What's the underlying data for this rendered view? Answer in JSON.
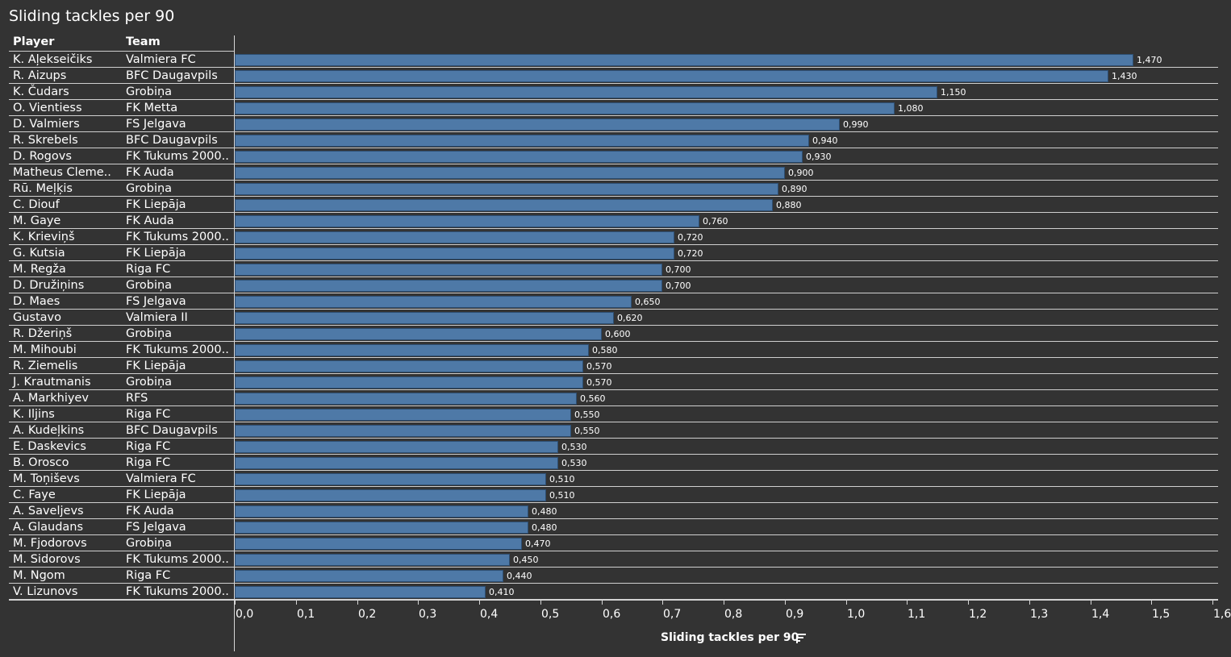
{
  "chart_data": {
    "type": "bar",
    "orientation": "horizontal",
    "title": "Sliding tackles per 90",
    "columns": [
      "Player",
      "Team"
    ],
    "xlabel": "Sliding tackles per 90",
    "xlim": [
      0,
      1.6
    ],
    "ticks": [
      "0,0",
      "0,1",
      "0,2",
      "0,3",
      "0,4",
      "0,5",
      "0,6",
      "0,7",
      "0,8",
      "0,9",
      "1,0",
      "1,1",
      "1,2",
      "1,3",
      "1,4",
      "1,5",
      "1,6"
    ],
    "grid": false,
    "bar_color": "#4e79a7",
    "rows": [
      {
        "player": "K. Aļekseičiks",
        "team": "Valmiera FC",
        "value": 1.47,
        "label": "1,470"
      },
      {
        "player": "R. Aizups",
        "team": "BFC Daugavpils",
        "value": 1.43,
        "label": "1,430"
      },
      {
        "player": "K. Čudars",
        "team": "Grobiņa",
        "value": 1.15,
        "label": "1,150"
      },
      {
        "player": "O. Vientiess",
        "team": "FK Metta",
        "value": 1.08,
        "label": "1,080"
      },
      {
        "player": "D. Valmiers",
        "team": "FS Jelgava",
        "value": 0.99,
        "label": "0,990"
      },
      {
        "player": "R. Skrebels",
        "team": "BFC Daugavpils",
        "value": 0.94,
        "label": "0,940"
      },
      {
        "player": "D. Rogovs",
        "team": "FK Tukums 2000..",
        "value": 0.93,
        "label": "0,930"
      },
      {
        "player": "Matheus Cleme..",
        "team": "FK Auda",
        "value": 0.9,
        "label": "0,900"
      },
      {
        "player": "Rū. Meļķis",
        "team": "Grobiņa",
        "value": 0.89,
        "label": "0,890"
      },
      {
        "player": "C. Diouf",
        "team": "FK Liepāja",
        "value": 0.88,
        "label": "0,880"
      },
      {
        "player": "M. Gaye",
        "team": "FK Auda",
        "value": 0.76,
        "label": "0,760"
      },
      {
        "player": "K. Krieviņš",
        "team": "FK Tukums 2000..",
        "value": 0.72,
        "label": "0,720"
      },
      {
        "player": "G. Kutsia",
        "team": "FK Liepāja",
        "value": 0.72,
        "label": "0,720"
      },
      {
        "player": "M. Regža",
        "team": "Riga FC",
        "value": 0.7,
        "label": "0,700"
      },
      {
        "player": "D. Družiņins",
        "team": "Grobiņa",
        "value": 0.7,
        "label": "0,700"
      },
      {
        "player": "D. Maes",
        "team": "FS Jelgava",
        "value": 0.65,
        "label": "0,650"
      },
      {
        "player": "Gustavo",
        "team": "Valmiera II",
        "value": 0.62,
        "label": "0,620"
      },
      {
        "player": "R. Džeriņš",
        "team": "Grobiņa",
        "value": 0.6,
        "label": "0,600"
      },
      {
        "player": "M. Mihoubi",
        "team": "FK Tukums 2000..",
        "value": 0.58,
        "label": "0,580"
      },
      {
        "player": "R. Ziemelis",
        "team": "FK Liepāja",
        "value": 0.57,
        "label": "0,570"
      },
      {
        "player": "J. Krautmanis",
        "team": "Grobiņa",
        "value": 0.57,
        "label": "0,570"
      },
      {
        "player": "A. Markhiyev",
        "team": "RFS",
        "value": 0.56,
        "label": "0,560"
      },
      {
        "player": "K. Iljins",
        "team": "Riga FC",
        "value": 0.55,
        "label": "0,550"
      },
      {
        "player": "A. Kudeļkins",
        "team": "BFC Daugavpils",
        "value": 0.55,
        "label": "0,550"
      },
      {
        "player": "E. Daskevics",
        "team": "Riga FC",
        "value": 0.53,
        "label": "0,530"
      },
      {
        "player": "B. Orosco",
        "team": "Riga FC",
        "value": 0.53,
        "label": "0,530"
      },
      {
        "player": "M. Toņiševs",
        "team": "Valmiera FC",
        "value": 0.51,
        "label": "0,510"
      },
      {
        "player": "C. Faye",
        "team": "FK Liepāja",
        "value": 0.51,
        "label": "0,510"
      },
      {
        "player": "A. Saveljevs",
        "team": "FK Auda",
        "value": 0.48,
        "label": "0,480"
      },
      {
        "player": "A. Glaudans",
        "team": "FS Jelgava",
        "value": 0.48,
        "label": "0,480"
      },
      {
        "player": "M. Fjodorovs",
        "team": "Grobiņa",
        "value": 0.47,
        "label": "0,470"
      },
      {
        "player": "M. Sidorovs",
        "team": "FK Tukums 2000..",
        "value": 0.45,
        "label": "0,450"
      },
      {
        "player": "M. Ngom",
        "team": "Riga FC",
        "value": 0.44,
        "label": "0,440"
      },
      {
        "player": "V. Lizunovs",
        "team": "FK Tukums 2000..",
        "value": 0.41,
        "label": "0,410"
      }
    ]
  },
  "icons": {
    "sort": "sort-descending-icon"
  }
}
